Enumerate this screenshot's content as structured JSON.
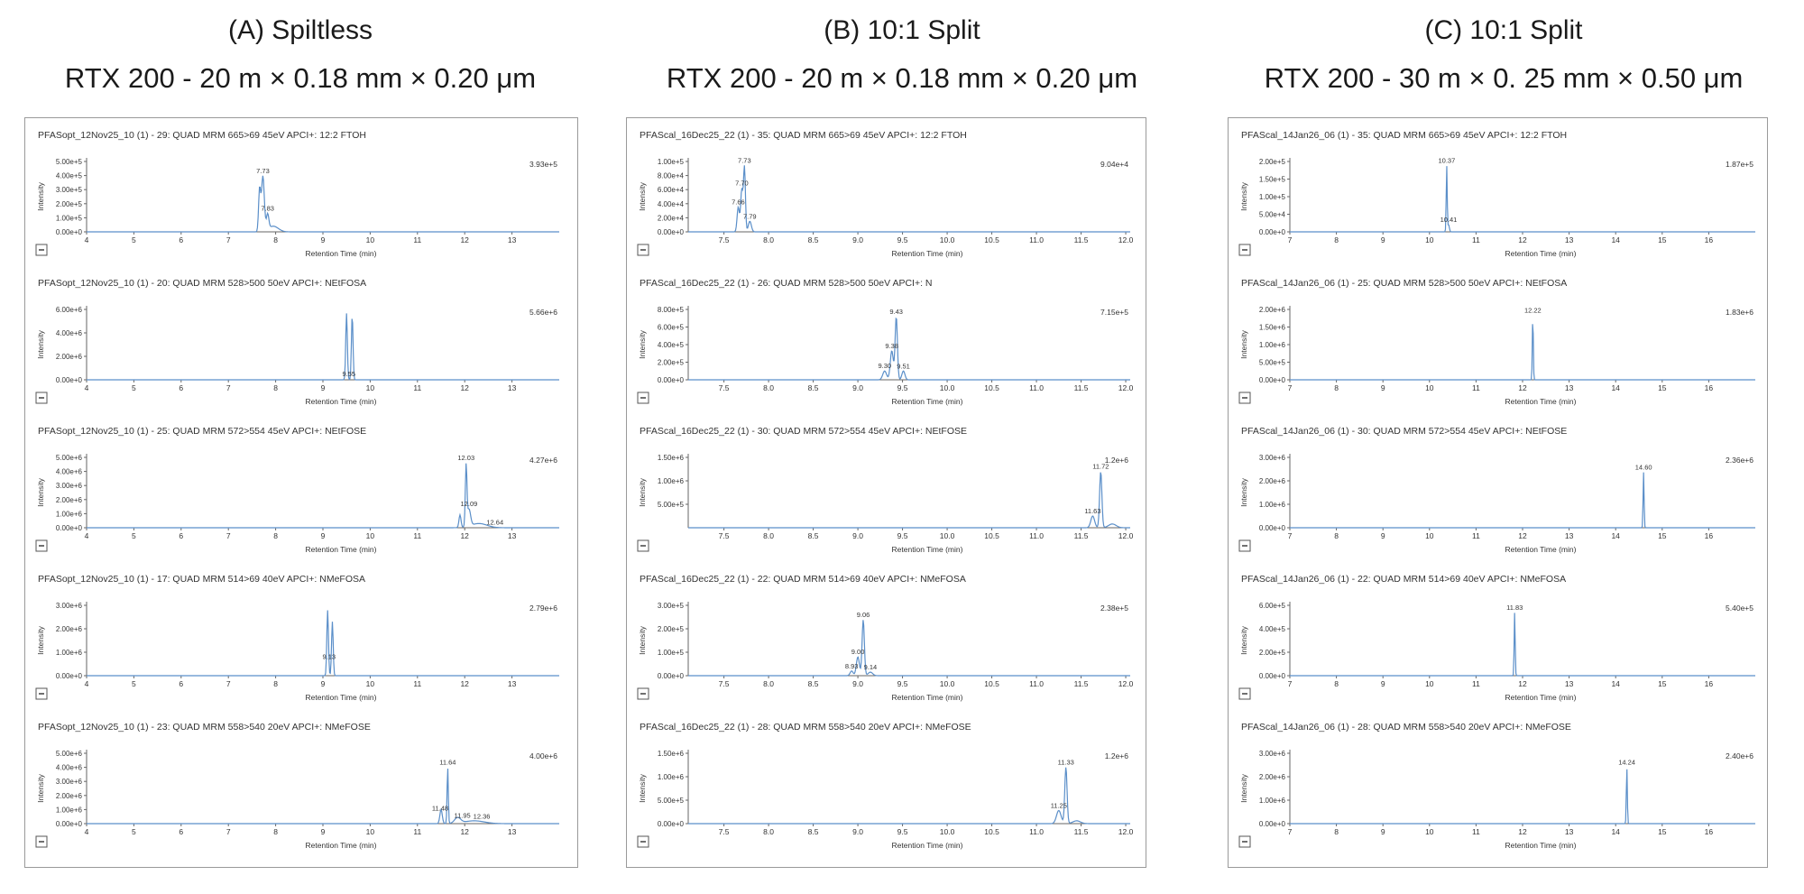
{
  "columns": [
    {
      "title": "(A) Spiltless",
      "column_spec": "RTX 200 - 20 m × 0.18 mm × 0.20 μm",
      "chart_data": {
        "type": "line",
        "xlabel": "Retention Time (min)",
        "ylabel": "Intensity",
        "xlim": [
          4,
          14
        ],
        "xticks": [
          "4",
          "5",
          "6",
          "7",
          "8",
          "9",
          "10",
          "11",
          "12",
          "13"
        ],
        "plots": [
          {
            "trace": "PFASopt_12Nov25_10 (1) - 29: QUAD MRM 665>69 45eV APCI+: 12:2 FTOH",
            "max_label": "3.93e+5",
            "yticks": [
              "5.00e+5",
              "4.00e+5",
              "3.00e+5",
              "2.00e+5",
              "1.00e+5",
              "0.00e+0"
            ],
            "ylim": [
              0,
              500000
            ],
            "peaks": [
              {
                "rt": 7.73,
                "height": 393000,
                "width": 0.07
              },
              {
                "rt": 7.66,
                "height": 300000,
                "width": 0.05
              },
              {
                "rt": 7.83,
                "height": 110000,
                "width": 0.06
              },
              {
                "rt": 7.95,
                "height": 40000,
                "width": 0.25
              }
            ],
            "peak_labels": [
              {
                "rt": 7.73,
                "text": "7.73"
              },
              {
                "rt": 7.83,
                "text": "7.83"
              }
            ]
          },
          {
            "trace": "PFASopt_12Nov25_10 (1) - 20: QUAD MRM 528>500 50eV APCI+: NEtFOSA",
            "max_label": "5.66e+6",
            "yticks": [
              "6.00e+6",
              "4.00e+6",
              "2.00e+6",
              "0.00e+0"
            ],
            "ylim": [
              0,
              6000000
            ],
            "peaks": [
              {
                "rt": 9.5,
                "height": 5660000,
                "width": 0.04
              },
              {
                "rt": 9.62,
                "height": 5500000,
                "width": 0.04
              }
            ],
            "peak_labels": [
              {
                "rt": 9.55,
                "text": "9.55"
              }
            ]
          },
          {
            "trace": "PFASopt_12Nov25_10 (1) - 25: QUAD MRM 572>554 45eV APCI+: NEtFOSE",
            "max_label": "4.27e+6",
            "yticks": [
              "5.00e+6",
              "4.00e+6",
              "3.00e+6",
              "2.00e+6",
              "1.00e+6",
              "0.00e+0"
            ],
            "ylim": [
              0,
              5000000
            ],
            "peaks": [
              {
                "rt": 12.03,
                "height": 4270000,
                "width": 0.04
              },
              {
                "rt": 11.9,
                "height": 900000,
                "width": 0.05
              },
              {
                "rt": 12.09,
                "height": 1200000,
                "width": 0.08
              },
              {
                "rt": 12.3,
                "height": 300000,
                "width": 0.4
              }
            ],
            "peak_labels": [
              {
                "rt": 12.03,
                "text": "12.03"
              },
              {
                "rt": 12.09,
                "text": "12.09"
              },
              {
                "rt": 12.64,
                "text": "12.64"
              }
            ]
          },
          {
            "trace": "PFASopt_12Nov25_10 (1) - 17: QUAD MRM 514>69 40eV APCI+: NMeFOSA",
            "max_label": "2.79e+6",
            "yticks": [
              "3.00e+6",
              "2.00e+6",
              "1.00e+6",
              "0.00e+0"
            ],
            "ylim": [
              0,
              3000000
            ],
            "peaks": [
              {
                "rt": 9.1,
                "height": 2790000,
                "width": 0.04
              },
              {
                "rt": 9.2,
                "height": 2300000,
                "width": 0.04
              }
            ],
            "peak_labels": [
              {
                "rt": 9.13,
                "text": "9.13"
              }
            ]
          },
          {
            "trace": "PFASopt_12Nov25_10 (1) - 23: QUAD MRM 558>540 20eV APCI+: NMeFOSE",
            "max_label": "4.00e+6",
            "yticks": [
              "5.00e+6",
              "4.00e+6",
              "3.00e+6",
              "2.00e+6",
              "1.00e+6",
              "0.00e+0"
            ],
            "ylim": [
              0,
              5000000
            ],
            "peaks": [
              {
                "rt": 11.64,
                "height": 4000000,
                "width": 0.03
              },
              {
                "rt": 11.5,
                "height": 1000000,
                "width": 0.06
              },
              {
                "rt": 11.85,
                "height": 400000,
                "width": 0.15
              },
              {
                "rt": 12.2,
                "height": 200000,
                "width": 0.5
              }
            ],
            "peak_labels": [
              {
                "rt": 11.64,
                "text": "11.64"
              },
              {
                "rt": 11.48,
                "text": "11.48"
              },
              {
                "rt": 11.95,
                "text": "11.95"
              },
              {
                "rt": 12.36,
                "text": "12.36"
              }
            ]
          }
        ]
      }
    },
    {
      "title": "(B) 10:1 Split",
      "column_spec": "RTX 200 - 20 m × 0.18 mm × 0.20 μm",
      "chart_data": {
        "type": "line",
        "xlabel": "Retention Time (min)",
        "ylabel": "Intensity",
        "xlim": [
          7.1,
          12.05
        ],
        "xticks": [
          "7.5",
          "8.0",
          "8.5",
          "9.0",
          "9.5",
          "10.0",
          "10.5",
          "11.0",
          "11.5",
          "12.0"
        ],
        "plots": [
          {
            "trace": "PFAScal_16Dec25_22 (1) - 35: QUAD MRM 665>69 45eV APCI+: 12:2 FTOH",
            "max_label": "9.04e+4",
            "yticks": [
              "1.00e+5",
              "8.00e+4",
              "6.00e+4",
              "4.00e+4",
              "2.00e+4",
              "0.00e+0"
            ],
            "ylim": [
              0,
              100000
            ],
            "peaks": [
              {
                "rt": 7.73,
                "height": 90400,
                "width": 0.025
              },
              {
                "rt": 7.7,
                "height": 60000,
                "width": 0.03
              },
              {
                "rt": 7.66,
                "height": 35000,
                "width": 0.03
              },
              {
                "rt": 7.79,
                "height": 15000,
                "width": 0.04
              }
            ],
            "peak_labels": [
              {
                "rt": 7.73,
                "text": "7.73"
              },
              {
                "rt": 7.7,
                "text": "7.70"
              },
              {
                "rt": 7.66,
                "text": "7.66"
              },
              {
                "rt": 7.79,
                "text": "7.79"
              }
            ]
          },
          {
            "trace": "PFAScal_16Dec25_22 (1) - 26: QUAD MRM 528>500 50eV APCI+: N",
            "max_label": "7.15e+5",
            "yticks": [
              "8.00e+5",
              "6.00e+5",
              "4.00e+5",
              "2.00e+5",
              "0.00e+0"
            ],
            "ylim": [
              0,
              800000
            ],
            "peaks": [
              {
                "rt": 9.43,
                "height": 715000,
                "width": 0.03
              },
              {
                "rt": 9.38,
                "height": 330000,
                "width": 0.04
              },
              {
                "rt": 9.3,
                "height": 100000,
                "width": 0.05
              },
              {
                "rt": 9.51,
                "height": 100000,
                "width": 0.04
              }
            ],
            "peak_labels": [
              {
                "rt": 9.43,
                "text": "9.43"
              },
              {
                "rt": 9.38,
                "text": "9.38"
              },
              {
                "rt": 9.3,
                "text": "9.30"
              },
              {
                "rt": 9.51,
                "text": "9.51"
              }
            ]
          },
          {
            "trace": "PFAScal_16Dec25_22 (1) - 30: QUAD MRM 572>554 45eV APCI+: NEtFOSE",
            "max_label": "1.2e+6",
            "yticks": [
              "1.50e+6",
              "1.00e+6",
              "5.00e+5"
            ],
            "ylim": [
              0,
              1500000
            ],
            "peaks": [
              {
                "rt": 11.72,
                "height": 1200000,
                "width": 0.03
              },
              {
                "rt": 11.63,
                "height": 250000,
                "width": 0.05
              },
              {
                "rt": 11.85,
                "height": 80000,
                "width": 0.1
              }
            ],
            "peak_labels": [
              {
                "rt": 11.72,
                "text": "11.72"
              },
              {
                "rt": 11.63,
                "text": "11.63"
              }
            ]
          },
          {
            "trace": "PFAScal_16Dec25_22 (1) - 22: QUAD MRM 514>69 40eV APCI+: NMeFOSA",
            "max_label": "2.38e+5",
            "yticks": [
              "3.00e+5",
              "2.00e+5",
              "1.00e+5",
              "0.00e+0"
            ],
            "ylim": [
              0,
              300000
            ],
            "peaks": [
              {
                "rt": 9.06,
                "height": 238000,
                "width": 0.03
              },
              {
                "rt": 9.0,
                "height": 80000,
                "width": 0.04
              },
              {
                "rt": 8.93,
                "height": 20000,
                "width": 0.04
              },
              {
                "rt": 9.14,
                "height": 15000,
                "width": 0.06
              }
            ],
            "peak_labels": [
              {
                "rt": 9.06,
                "text": "9.06"
              },
              {
                "rt": 9.0,
                "text": "9.00"
              },
              {
                "rt": 8.93,
                "text": "8.93"
              },
              {
                "rt": 9.14,
                "text": "9.14"
              }
            ]
          },
          {
            "trace": "PFAScal_16Dec25_22 (1) - 28: QUAD MRM 558>540 20eV APCI+: NMeFOSE",
            "max_label": "1.2e+6",
            "yticks": [
              "1.50e+6",
              "1.00e+6",
              "5.00e+5",
              "0.00e+0"
            ],
            "ylim": [
              0,
              1500000
            ],
            "peaks": [
              {
                "rt": 11.33,
                "height": 1200000,
                "width": 0.03
              },
              {
                "rt": 11.25,
                "height": 280000,
                "width": 0.06
              },
              {
                "rt": 11.45,
                "height": 60000,
                "width": 0.1
              }
            ],
            "peak_labels": [
              {
                "rt": 11.33,
                "text": "11.33"
              },
              {
                "rt": 11.25,
                "text": "11.25"
              }
            ]
          }
        ]
      }
    },
    {
      "title": "(C) 10:1 Split",
      "column_spec": "RTX 200 - 30 m × 0. 25 mm × 0.50 μm",
      "chart_data": {
        "type": "line",
        "xlabel": "Retention Time (min)",
        "ylabel": "Intensity",
        "xlim": [
          7,
          17
        ],
        "xticks": [
          "7",
          "8",
          "9",
          "10",
          "11",
          "12",
          "13",
          "14",
          "15",
          "16"
        ],
        "plots": [
          {
            "trace": "PFAScal_14Jan26_06 (1) - 35: QUAD MRM 665>69 45eV APCI+: 12:2 FTOH",
            "max_label": "1.87e+5",
            "yticks": [
              "2.00e+5",
              "1.50e+5",
              "1.00e+5",
              "5.00e+4",
              "0.00e+0"
            ],
            "ylim": [
              0,
              200000
            ],
            "peaks": [
              {
                "rt": 10.37,
                "height": 187000,
                "width": 0.025
              },
              {
                "rt": 10.41,
                "height": 20000,
                "width": 0.04
              }
            ],
            "peak_labels": [
              {
                "rt": 10.37,
                "text": "10.37"
              },
              {
                "rt": 10.41,
                "text": "10.41"
              }
            ]
          },
          {
            "trace": "PFAScal_14Jan26_06 (1) - 25: QUAD MRM 528>500 50eV APCI+: NEtFOSA",
            "max_label": "1.83e+6",
            "yticks": [
              "2.00e+6",
              "1.50e+6",
              "1.00e+6",
              "5.00e+5",
              "0.00e+0"
            ],
            "ylim": [
              0,
              2000000
            ],
            "peaks": [
              {
                "rt": 12.22,
                "height": 1830000,
                "width": 0.025
              }
            ],
            "peak_labels": [
              {
                "rt": 12.22,
                "text": "12.22"
              }
            ]
          },
          {
            "trace": "PFAScal_14Jan26_06 (1) - 30: QUAD MRM 572>554 45eV APCI+: NEtFOSE",
            "max_label": "2.36e+6",
            "yticks": [
              "3.00e+6",
              "2.00e+6",
              "1.00e+6",
              "0.00e+0"
            ],
            "ylim": [
              0,
              3000000
            ],
            "peaks": [
              {
                "rt": 14.6,
                "height": 2360000,
                "width": 0.025
              }
            ],
            "peak_labels": [
              {
                "rt": 14.6,
                "text": "14.60"
              }
            ]
          },
          {
            "trace": "PFAScal_14Jan26_06 (1) - 22: QUAD MRM 514>69 40eV APCI+: NMeFOSA",
            "max_label": "5.40e+5",
            "yticks": [
              "6.00e+5",
              "4.00e+5",
              "2.00e+5",
              "0.00e+0"
            ],
            "ylim": [
              0,
              600000
            ],
            "peaks": [
              {
                "rt": 11.83,
                "height": 540000,
                "width": 0.025
              }
            ],
            "peak_labels": [
              {
                "rt": 11.83,
                "text": "11.83"
              }
            ]
          },
          {
            "trace": "PFAScal_14Jan26_06 (1) - 28: QUAD MRM 558>540 20eV APCI+: NMeFOSE",
            "max_label": "2.40e+6",
            "yticks": [
              "3.00e+6",
              "2.00e+6",
              "1.00e+6",
              "0.00e+0"
            ],
            "ylim": [
              0,
              3000000
            ],
            "peaks": [
              {
                "rt": 14.24,
                "height": 2400000,
                "width": 0.025
              }
            ],
            "peak_labels": [
              {
                "rt": 14.24,
                "text": "14.24"
              }
            ]
          }
        ]
      }
    }
  ],
  "colors": {
    "trace": "#5b8fc9",
    "axis": "#666666",
    "text": "#333333",
    "frame": "#9a9a9a"
  }
}
